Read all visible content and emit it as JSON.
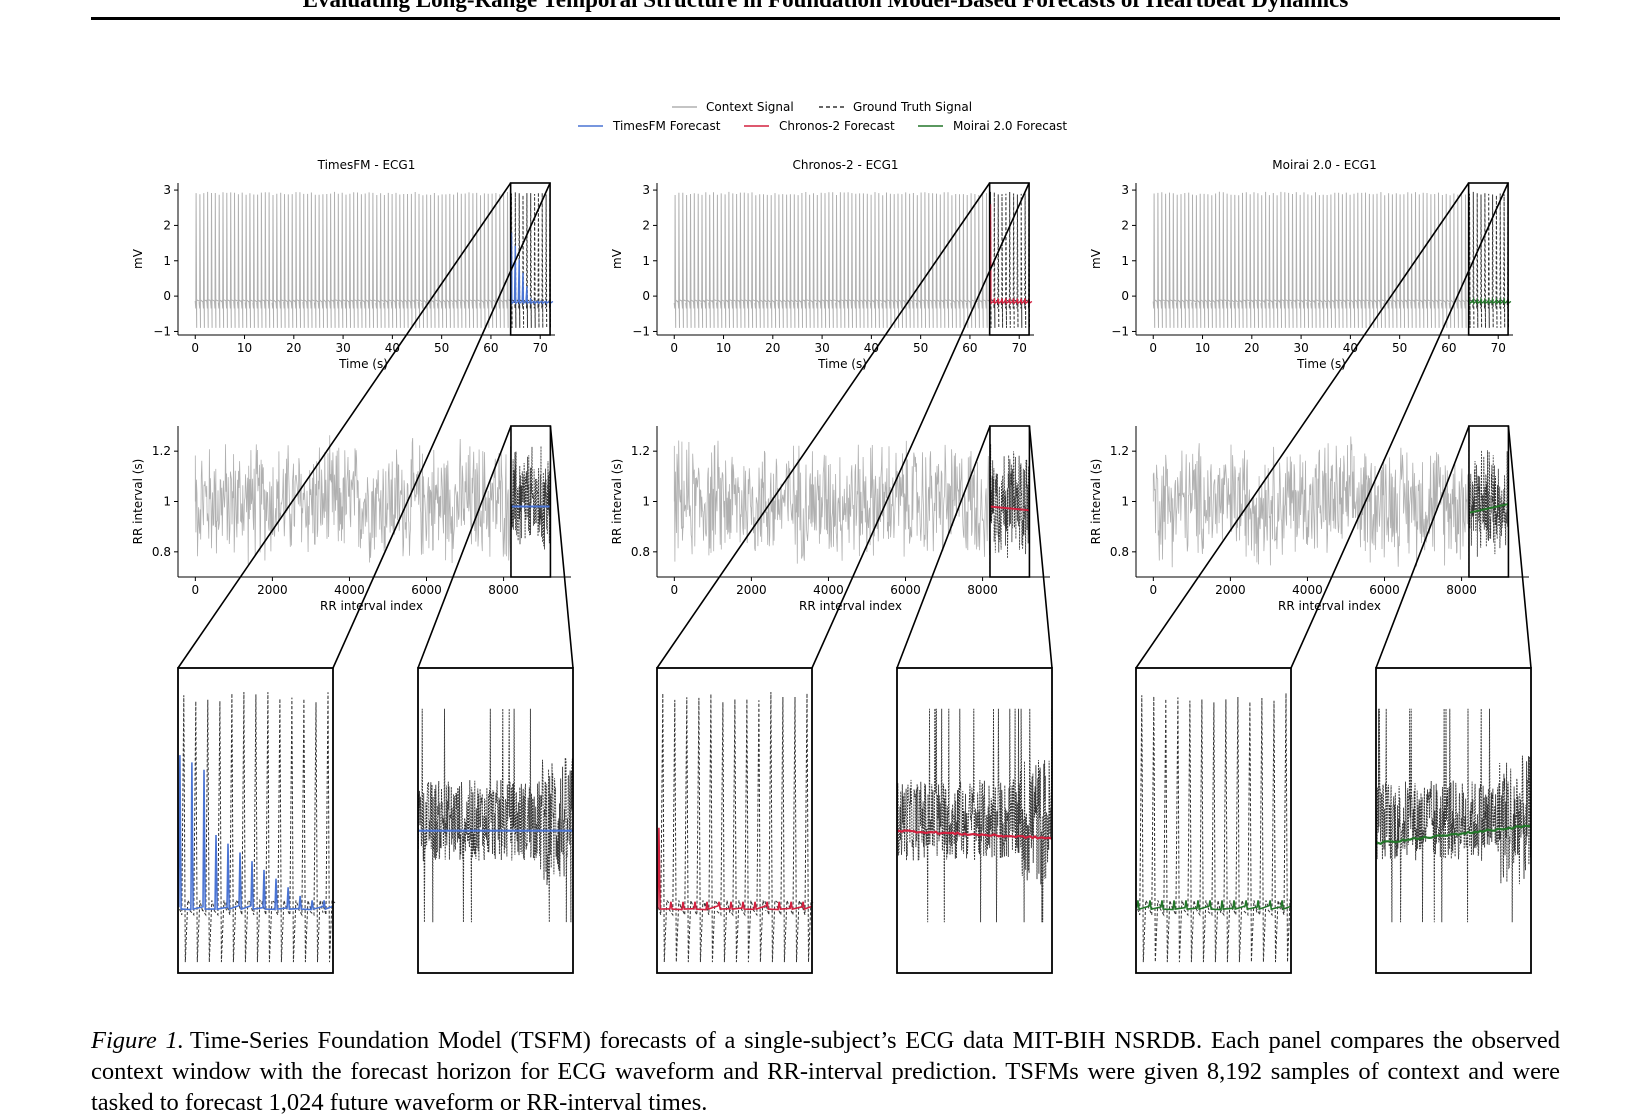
{
  "header": {
    "title": "Evaluating Long-Range Temporal Structure in Foundation Model-Based Forecasts of Heartbeat Dynamics"
  },
  "legend": {
    "context": "Context Signal",
    "ground_truth": "Ground Truth Signal",
    "timesfm": "TimesFM Forecast",
    "chronos": "Chronos-2 Forecast",
    "moirai": "Moirai 2.0 Forecast"
  },
  "colors": {
    "context": "#b0b0b0",
    "ground_truth": "#333333",
    "timesfm": "#4a74d4",
    "chronos": "#d3213f",
    "moirai": "#23772a"
  },
  "chart_data": [
    {
      "type": "line",
      "title": "TimesFM - ECG1",
      "xlabel": "Time (s)",
      "ylabel": "mV",
      "xticks": [
        0,
        10,
        20,
        30,
        40,
        50,
        60,
        70
      ],
      "yticks": [
        -1,
        0,
        1,
        2,
        3
      ],
      "xlim": [
        -3.5,
        73
      ],
      "ylim": [
        -1.1,
        3.2
      ],
      "context_x_range": [
        0,
        64
      ],
      "forecast_x_range": [
        64,
        72
      ],
      "series": [
        {
          "name": "Context Signal",
          "baseline": -0.15,
          "peak": 2.9,
          "trough": -0.9
        },
        {
          "name": "Ground Truth Signal",
          "baseline": -0.15,
          "peak": 2.9,
          "trough": -0.9
        },
        {
          "name": "TimesFM Forecast",
          "baseline": -0.15,
          "peak": 1.8
        }
      ],
      "color_key": "timesfm"
    },
    {
      "type": "line",
      "title": "Chronos-2 - ECG1",
      "xlabel": "Time (s)",
      "ylabel": "mV",
      "xticks": [
        0,
        10,
        20,
        30,
        40,
        50,
        60,
        70
      ],
      "yticks": [
        -1,
        0,
        1,
        2,
        3
      ],
      "xlim": [
        -3.5,
        73
      ],
      "ylim": [
        -1.1,
        3.2
      ],
      "context_x_range": [
        0,
        64
      ],
      "forecast_x_range": [
        64,
        72
      ],
      "series": [
        {
          "name": "Context Signal",
          "baseline": -0.15,
          "peak": 2.9,
          "trough": -0.9
        },
        {
          "name": "Ground Truth Signal",
          "baseline": -0.15,
          "peak": 2.9,
          "trough": -0.9
        },
        {
          "name": "Chronos-2 Forecast",
          "baseline": -0.15,
          "peak": 2.6
        }
      ],
      "color_key": "chronos"
    },
    {
      "type": "line",
      "title": "Moirai 2.0 - ECG1",
      "xlabel": "Time (s)",
      "ylabel": "mV",
      "xticks": [
        0,
        10,
        20,
        30,
        40,
        50,
        60,
        70
      ],
      "yticks": [
        -1,
        0,
        1,
        2,
        3
      ],
      "xlim": [
        -3.5,
        73
      ],
      "ylim": [
        -1.1,
        3.2
      ],
      "context_x_range": [
        0,
        64
      ],
      "forecast_x_range": [
        64,
        72
      ],
      "series": [
        {
          "name": "Context Signal",
          "baseline": -0.15,
          "peak": 2.9,
          "trough": -0.9
        },
        {
          "name": "Ground Truth Signal",
          "baseline": -0.15,
          "peak": 2.9,
          "trough": -0.9
        },
        {
          "name": "Moirai 2.0 Forecast",
          "baseline": -0.15,
          "peak": -0.1
        }
      ],
      "color_key": "moirai"
    },
    {
      "type": "line",
      "title": "",
      "xlabel": "RR interval index",
      "ylabel": "RR interval (s)",
      "xticks": [
        0,
        2000,
        4000,
        6000,
        8000
      ],
      "yticks": [
        0.8,
        1.0,
        1.2
      ],
      "xlim": [
        -450,
        9750
      ],
      "ylim": [
        0.7,
        1.3
      ],
      "context_x_range": [
        0,
        8192
      ],
      "forecast_x_range": [
        8192,
        9216
      ],
      "series": [
        {
          "name": "Context Signal",
          "mean": 1.0,
          "min": 0.72,
          "max": 1.27
        },
        {
          "name": "Ground Truth Signal",
          "mean": 1.0,
          "min": 0.75,
          "max": 1.25
        },
        {
          "name": "TimesFM Forecast",
          "start": 0.98,
          "end": 0.98
        }
      ],
      "color_key": "timesfm"
    },
    {
      "type": "line",
      "title": "",
      "xlabel": "RR interval index",
      "ylabel": "RR interval (s)",
      "xticks": [
        0,
        2000,
        4000,
        6000,
        8000
      ],
      "yticks": [
        0.8,
        1.0,
        1.2
      ],
      "xlim": [
        -450,
        9750
      ],
      "ylim": [
        0.7,
        1.3
      ],
      "context_x_range": [
        0,
        8192
      ],
      "forecast_x_range": [
        8192,
        9216
      ],
      "series": [
        {
          "name": "Context Signal",
          "mean": 1.0,
          "min": 0.72,
          "max": 1.27
        },
        {
          "name": "Ground Truth Signal",
          "mean": 1.0,
          "min": 0.75,
          "max": 1.25
        },
        {
          "name": "Chronos-2 Forecast",
          "start": 0.98,
          "end": 0.965
        }
      ],
      "color_key": "chronos"
    },
    {
      "type": "line",
      "title": "",
      "xlabel": "RR interval index",
      "ylabel": "RR interval (s)",
      "xticks": [
        0,
        2000,
        4000,
        6000,
        8000
      ],
      "yticks": [
        0.8,
        1.0,
        1.2
      ],
      "xlim": [
        -450,
        9750
      ],
      "ylim": [
        0.7,
        1.3
      ],
      "context_x_range": [
        0,
        8192
      ],
      "forecast_x_range": [
        8192,
        9216
      ],
      "series": [
        {
          "name": "Context Signal",
          "mean": 1.0,
          "min": 0.72,
          "max": 1.27
        },
        {
          "name": "Ground Truth Signal",
          "mean": 1.0,
          "min": 0.75,
          "max": 1.25
        },
        {
          "name": "Moirai 2.0 Forecast",
          "start": 0.955,
          "end": 0.99
        }
      ],
      "color_key": "moirai"
    }
  ],
  "caption": {
    "label": "Figure 1.",
    "text": "Time-Series Foundation Model (TSFM) forecasts of a single-subject’s ECG data MIT-BIH NSRDB. Each panel compares the observed context window with the forecast horizon for ECG waveform and RR-interval prediction. TSFMs were given 8,192 samples of context and were tasked to forecast 1,024 future waveform or RR-interval times."
  }
}
